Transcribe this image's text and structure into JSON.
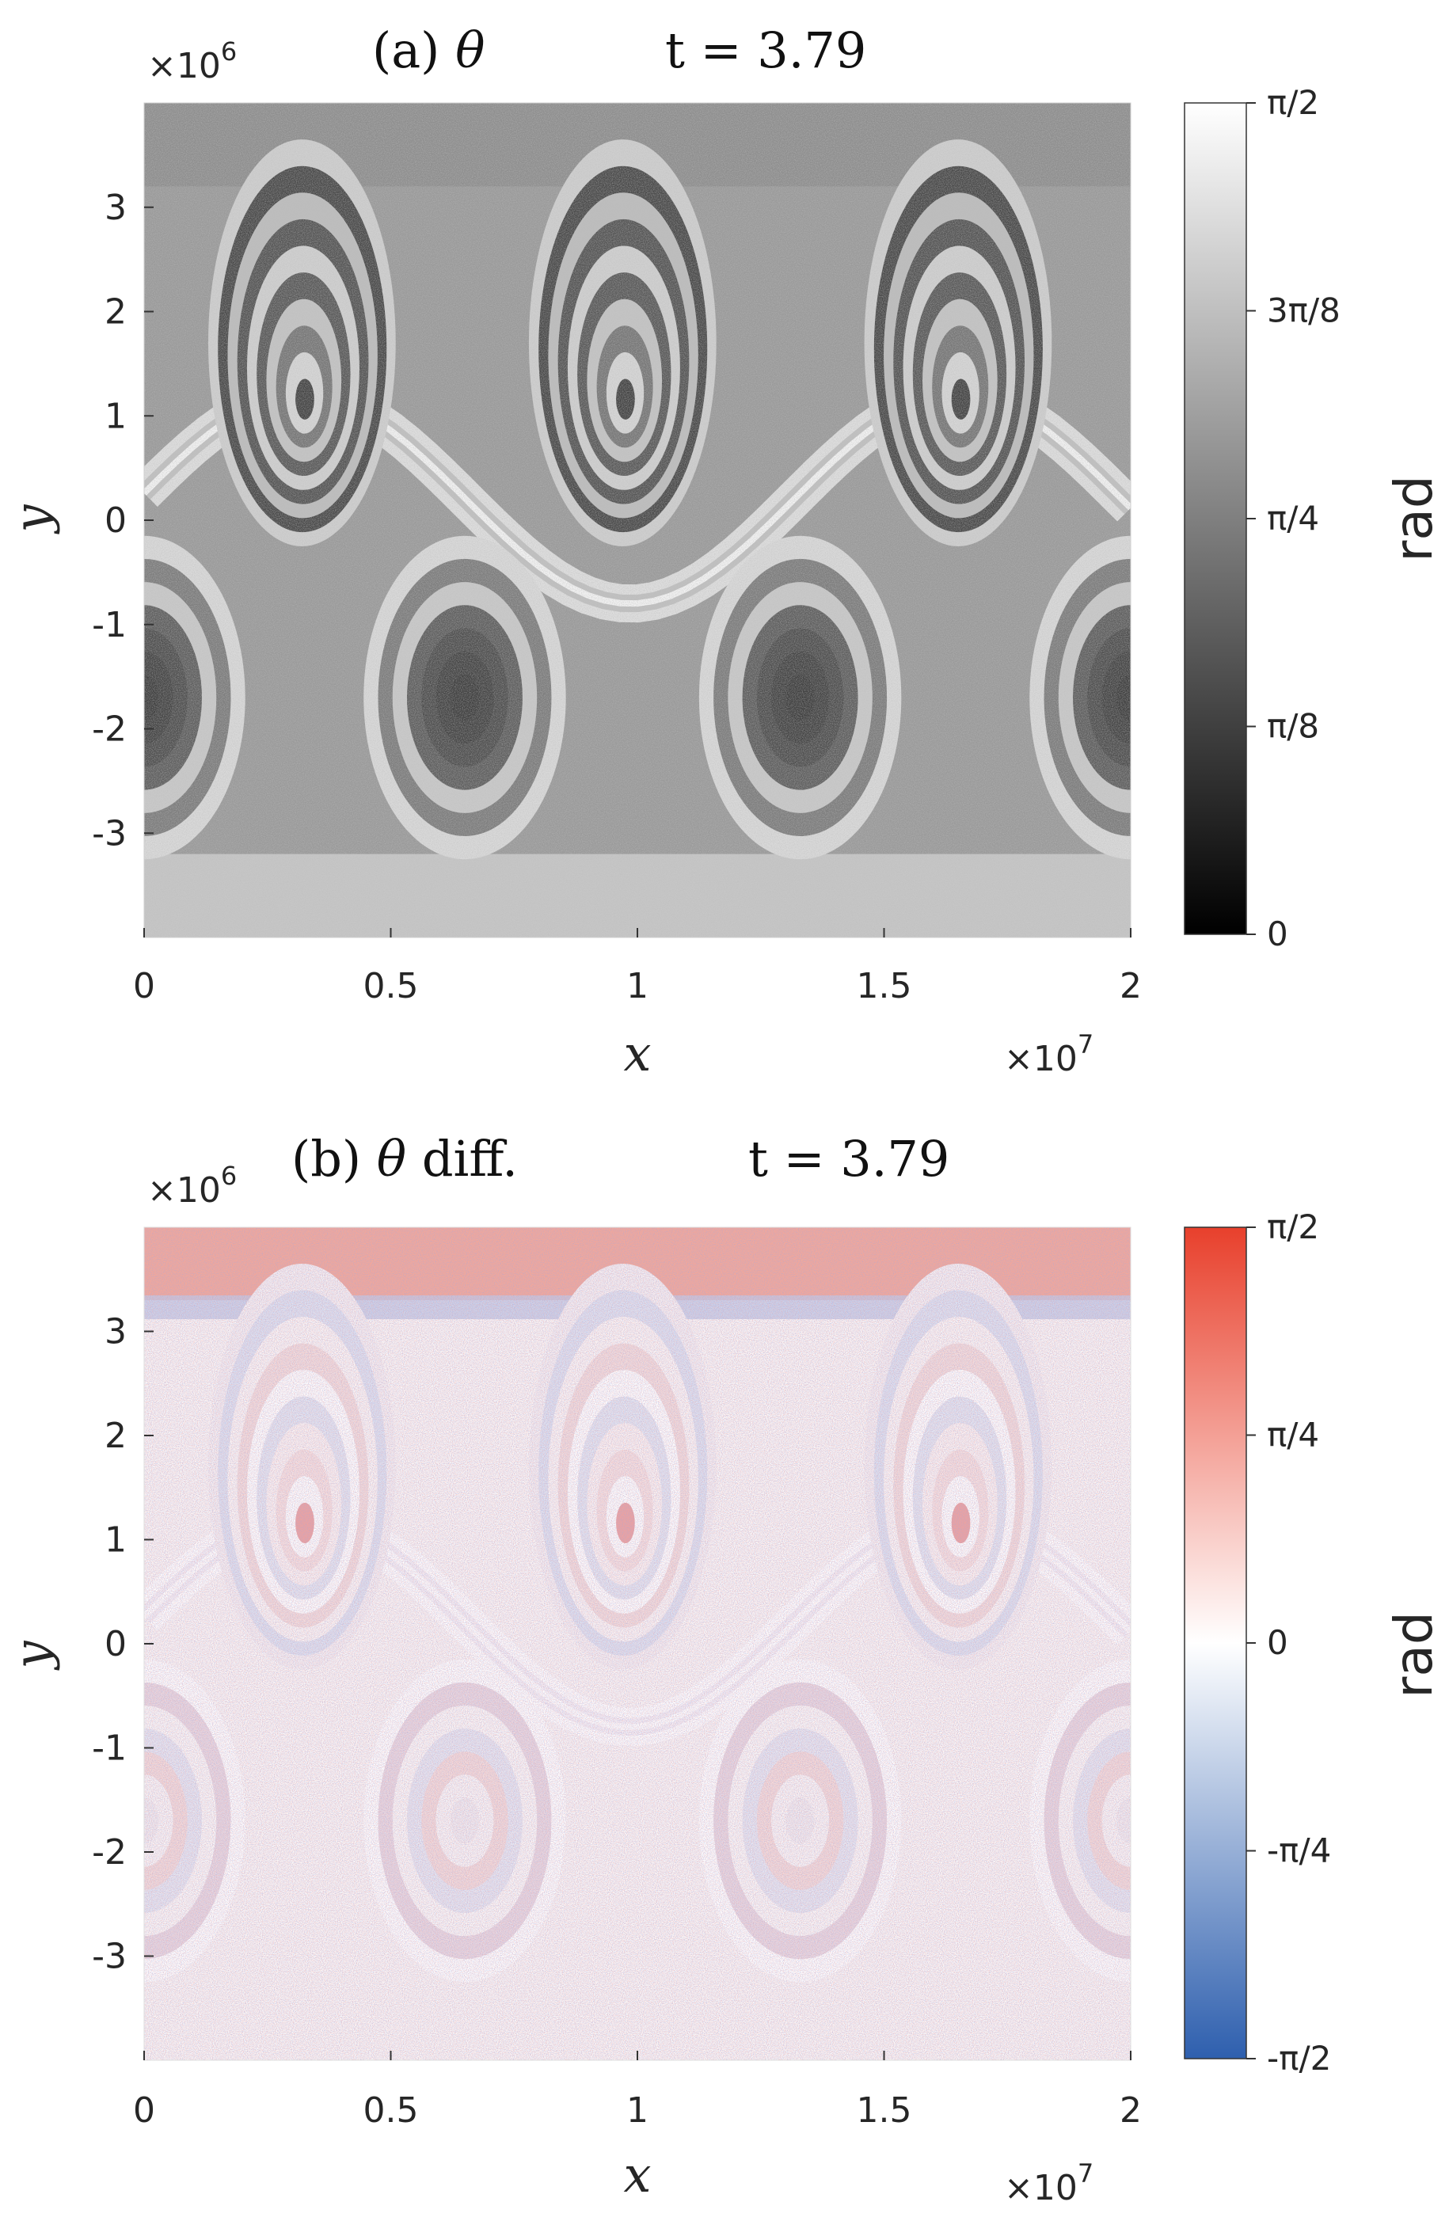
{
  "chart_data": [
    {
      "type": "heatmap",
      "title": "(a) θ        t = 3.79",
      "xlabel": "x",
      "ylabel": "y",
      "x_multiplier": "×10^7",
      "y_multiplier": "×10^6",
      "xlim": [
        0,
        2
      ],
      "ylim": [
        -4,
        4
      ],
      "x_ticks": [
        "0",
        "0.5",
        "1",
        "1.5",
        "2"
      ],
      "y_ticks": [
        "3",
        "2",
        "1",
        "0",
        "-1",
        "-2",
        "-3"
      ],
      "colormap": "gray",
      "colorbar": {
        "label": "rad",
        "range": [
          0,
          1.5708
        ],
        "ticks": [
          "π/2",
          "3π/8",
          "π/4",
          "π/8",
          "0"
        ],
        "low_color": "#000000",
        "high_color": "#ffffff"
      },
      "features": {
        "upper_vortex_centers_x": [
          0.32,
          0.97,
          1.65
        ],
        "upper_vortex_center_y": 1.4,
        "lower_vortex_centers_x": [
          0.0,
          0.65,
          1.33,
          2.0
        ],
        "lower_vortex_center_y": -1.7
      }
    },
    {
      "type": "heatmap",
      "title": "(b) θ diff.        t = 3.79",
      "xlabel": "x",
      "ylabel": "y",
      "x_multiplier": "×10^7",
      "y_multiplier": "×10^6",
      "xlim": [
        0,
        2
      ],
      "ylim": [
        -4,
        4
      ],
      "x_ticks": [
        "0",
        "0.5",
        "1",
        "1.5",
        "2"
      ],
      "y_ticks": [
        "3",
        "2",
        "1",
        "0",
        "-1",
        "-2",
        "-3"
      ],
      "colormap": "diverging blue-white-red",
      "colorbar": {
        "label": "rad",
        "range": [
          -1.5708,
          1.5708
        ],
        "ticks": [
          "π/2",
          "π/4",
          "0",
          "-π/4",
          "-π/2"
        ],
        "low_color": "#2e5fae",
        "mid_color": "#ffffff",
        "high_color": "#e8402c"
      },
      "features": {
        "upper_vortex_centers_x": [
          0.32,
          0.97,
          1.65
        ],
        "upper_vortex_center_y": 1.4,
        "lower_vortex_centers_x": [
          0.0,
          0.65,
          1.33,
          2.0
        ],
        "lower_vortex_center_y": -1.7
      }
    }
  ],
  "panels": [
    {
      "title_prefix": "(a)",
      "title_symbol": "θ",
      "title_suffix": "",
      "time_label": "t = 3.79",
      "x_exp_base": "×10",
      "x_exp_power": "7",
      "y_exp_base": "×10",
      "y_exp_power": "6",
      "xlabel": "x",
      "ylabel": "y",
      "cbar_label": "rad",
      "cbar_ticks": [
        "π/2",
        "3π/8",
        "π/4",
        "π/8",
        "0"
      ]
    },
    {
      "title_prefix": "(b)",
      "title_symbol": "θ",
      "title_suffix": "diff.",
      "time_label": "t = 3.79",
      "x_exp_base": "×10",
      "x_exp_power": "7",
      "y_exp_base": "×10",
      "y_exp_power": "6",
      "xlabel": "x",
      "ylabel": "y",
      "cbar_label": "rad",
      "cbar_ticks": [
        "π/2",
        "π/4",
        "0",
        "-π/4",
        "-π/2"
      ]
    }
  ]
}
